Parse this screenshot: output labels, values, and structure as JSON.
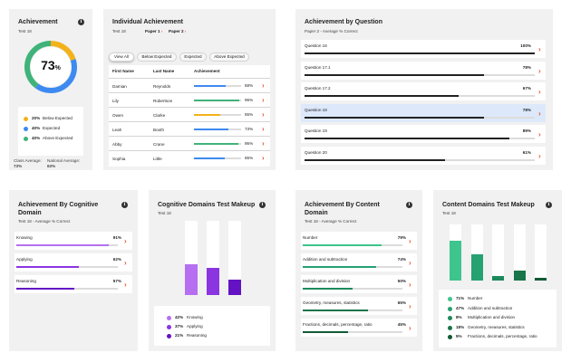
{
  "colors": {
    "accent": "#e8542d",
    "below": "#f2b21a",
    "expected": "#3d8af0",
    "above": "#3fb37a",
    "cog_knowing": "#b56ff0",
    "cog_applying": "#8a35e0",
    "cog_reasoning": "#6412c4",
    "con_1": "#3ec48d",
    "con_2": "#25a172",
    "con_3": "#1d8a5d",
    "con_4": "#187548",
    "con_5": "#0f5a36"
  },
  "achievement": {
    "title": "Achievement",
    "test": "Test 18",
    "score": "73",
    "unit": "%",
    "legend": [
      {
        "pct": "20%",
        "label": "Below Expected",
        "value": 20
      },
      {
        "pct": "40%",
        "label": "Expected",
        "value": 40
      },
      {
        "pct": "40%",
        "label": "Above Expected",
        "value": 40
      }
    ],
    "class_avg_label": "Class Average:",
    "class_avg": "73%",
    "national_avg_label": "National Average:",
    "national_avg": "63%"
  },
  "individual": {
    "title": "Individual Achievement",
    "test": "Test 18",
    "paper1": "Paper 1",
    "paper2": "Paper 2",
    "filters": [
      "View All",
      "Below Expected",
      "Expected",
      "Above Expected"
    ],
    "headers": [
      "First Name",
      "Last Name",
      "Achievement"
    ],
    "rows": [
      {
        "first": "Damian",
        "last": "Reynolds",
        "pct": "68%",
        "value": 68,
        "color": "#3d8af0"
      },
      {
        "first": "Lily",
        "last": "Robertson",
        "pct": "96%",
        "value": 96,
        "color": "#3fb37a"
      },
      {
        "first": "Owen",
        "last": "Clarke",
        "pct": "55%",
        "value": 55,
        "color": "#f2b21a"
      },
      {
        "first": "Leah",
        "last": "Booth",
        "pct": "73%",
        "value": 73,
        "color": "#3d8af0"
      },
      {
        "first": "Abby",
        "last": "Crane",
        "pct": "95%",
        "value": 95,
        "color": "#3fb37a"
      },
      {
        "first": "Sophia",
        "last": "Little",
        "pct": "65%",
        "value": 65,
        "color": "#3d8af0"
      }
    ]
  },
  "by_question": {
    "title": "Achievement by Question",
    "subtitle": "Paper 2 - Average % Correct",
    "rows": [
      {
        "label": "Question 16",
        "pct": "100%",
        "value": 100
      },
      {
        "label": "Question 17.1",
        "pct": "78%",
        "value": 78
      },
      {
        "label": "Question 17.2",
        "pct": "67%",
        "value": 67
      },
      {
        "label": "Question 18",
        "pct": "78%",
        "value": 78
      },
      {
        "label": "Question 19",
        "pct": "89%",
        "value": 89
      },
      {
        "label": "Question 20",
        "pct": "61%",
        "value": 61
      }
    ]
  },
  "by_cognitive": {
    "title1": "Achievement By Cognitive",
    "title2": "Domain",
    "subtitle": "Test 18 - Average % Correct",
    "rows": [
      {
        "label": "Knowing",
        "pct": "91%",
        "value": 91,
        "color": "#b56ff0"
      },
      {
        "label": "Applying",
        "pct": "62%",
        "value": 62,
        "color": "#8a35e0"
      },
      {
        "label": "Reasoning",
        "pct": "57%",
        "value": 57,
        "color": "#6412c4"
      }
    ]
  },
  "cog_makeup": {
    "title": "Cognitive Domains Test Makeup",
    "test": "Test 18",
    "items": [
      {
        "pct": "42%",
        "label": "Knowing",
        "value": 42,
        "color": "#b56ff0"
      },
      {
        "pct": "37%",
        "label": "Applying",
        "value": 37,
        "color": "#8a35e0"
      },
      {
        "pct": "21%",
        "label": "Reasoning",
        "value": 21,
        "color": "#6412c4"
      }
    ]
  },
  "by_content": {
    "title1": "Achievement By Content",
    "title2": "Domain",
    "subtitle": "Test 18 - Average % Correct",
    "rows": [
      {
        "label": "Number",
        "pct": "79%",
        "value": 79,
        "color": "#3ec48d"
      },
      {
        "label": "Addition and subtraction",
        "pct": "74%",
        "value": 74,
        "color": "#25a172"
      },
      {
        "label": "Multiplication and division",
        "pct": "50%",
        "value": 50,
        "color": "#1d8a5d"
      },
      {
        "label": "Geometry, measures, statistics",
        "pct": "65%",
        "value": 65,
        "color": "#187548"
      },
      {
        "label": "Fractions, decimals, percentage, ratio",
        "pct": "45%",
        "value": 45,
        "color": "#0f5a36"
      }
    ]
  },
  "content_makeup": {
    "title": "Content Domains Test Makeup",
    "test": "Test 18",
    "items": [
      {
        "pct": "71%",
        "label": "Number",
        "value": 71,
        "color": "#3ec48d"
      },
      {
        "pct": "47%",
        "label": "Addition and subtraction",
        "value": 47,
        "color": "#25a172"
      },
      {
        "pct": "8%",
        "label": "Multiplication and division",
        "value": 8,
        "color": "#1d8a5d"
      },
      {
        "pct": "18%",
        "label": "Geometry, measures, statistics",
        "value": 18,
        "color": "#187548"
      },
      {
        "pct": "5%",
        "label": "Fractions, decimals, percentage, ratio",
        "value": 5,
        "color": "#0f5a36"
      }
    ]
  }
}
